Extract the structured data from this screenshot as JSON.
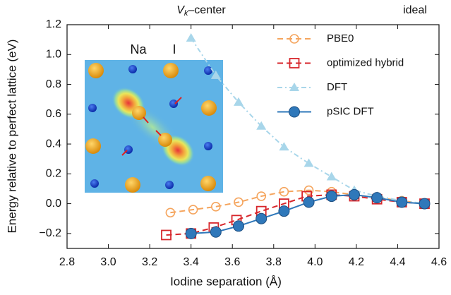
{
  "chart_data": {
    "type": "line",
    "xlabel": "Iodine separation (Å)",
    "ylabel": "Energy relative to perfect lattice (eV)",
    "annotations": [
      {
        "text": [
          "V",
          "k",
          "–center"
        ]
      },
      {
        "text": [
          "ideal"
        ]
      }
    ],
    "inset_labels": [
      "Na",
      "I"
    ],
    "xlim": [
      2.8,
      4.6
    ],
    "xticks": [
      2.8,
      {
        "value": 3.0,
        "label": "3.0"
      },
      3.2,
      3.4,
      3.6,
      3.8,
      {
        "value": 4.0,
        "label": "4.0"
      },
      4.2,
      4.4,
      4.6
    ],
    "ylim": [
      -0.3,
      1.2
    ],
    "yticks": [
      {
        "value": -0.2,
        "label": "−0.2"
      },
      {
        "value": 0.0,
        "label": "0.0"
      },
      0.2,
      0.4,
      0.6,
      0.8,
      {
        "value": 1.0,
        "label": "1.0"
      },
      1.2
    ],
    "grid": false,
    "legend": "upper right",
    "series": [
      {
        "name": "PBE0",
        "color": "#f5a55e",
        "linestyle": "dashed",
        "marker": "open-circle",
        "x": [
          3.3,
          3.41,
          3.52,
          3.63,
          3.74,
          3.85,
          3.97,
          4.08,
          4.19,
          4.3,
          4.42,
          4.53
        ],
        "values": [
          -0.06,
          -0.04,
          -0.02,
          0.01,
          0.05,
          0.08,
          0.09,
          0.08,
          0.06,
          0.04,
          0.02,
          0.0
        ]
      },
      {
        "name": "optimized hybrid",
        "color": "#d7262b",
        "linestyle": "dashed",
        "marker": "open-square",
        "x": [
          3.28,
          3.4,
          3.51,
          3.62,
          3.74,
          3.85,
          3.96,
          4.08,
          4.19,
          4.3,
          4.42,
          4.53
        ],
        "values": [
          -0.21,
          -0.2,
          -0.16,
          -0.11,
          -0.05,
          0.0,
          0.05,
          0.06,
          0.05,
          0.03,
          0.01,
          0.0
        ]
      },
      {
        "name": "DFT",
        "color": "#a8d6ea",
        "linestyle": "dashdot",
        "marker": "triangle",
        "x": [
          3.4,
          3.52,
          3.63,
          3.74,
          3.85,
          3.97,
          4.08,
          4.19,
          4.3,
          4.42,
          4.53
        ],
        "values": [
          1.11,
          0.86,
          0.68,
          0.52,
          0.38,
          0.27,
          0.18,
          0.09,
          0.05,
          0.02,
          0.0
        ]
      },
      {
        "name": "pSIC DFT",
        "color": "#2f78ba",
        "linestyle": "solid",
        "marker": "filled-circle",
        "x": [
          3.4,
          3.52,
          3.63,
          3.74,
          3.85,
          3.97,
          4.08,
          4.19,
          4.3,
          4.42,
          4.53
        ],
        "values": [
          -0.2,
          -0.19,
          -0.15,
          -0.1,
          -0.05,
          0.01,
          0.05,
          0.06,
          0.04,
          0.01,
          0.0
        ]
      }
    ]
  }
}
